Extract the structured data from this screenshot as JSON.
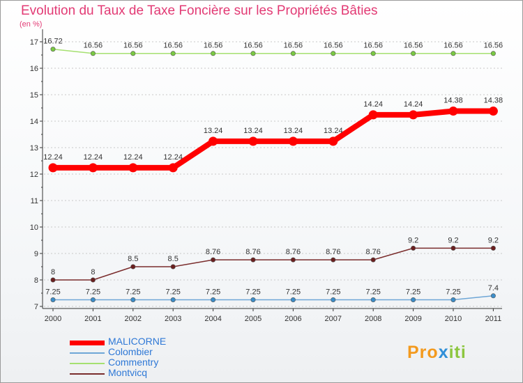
{
  "header": {
    "title": "Evolution du Taux de Taxe Foncière sur les Propriétés Bâties",
    "subtitle": "(en %)"
  },
  "logo": {
    "part1": "Pro",
    "part2": "x",
    "part3": "iti"
  },
  "colors": {
    "title": "#e23a74",
    "axis": "#333333",
    "grid": "#c8c8c8",
    "legend_text": "#2e78d6"
  },
  "chart_data": {
    "type": "line",
    "title": "Evolution du Taux de Taxe Foncière sur les Propriétés Bâties",
    "ylabel": "(en %)",
    "xlabel": "",
    "ylim": [
      7,
      17
    ],
    "yticks": [
      7,
      8,
      9,
      10,
      11,
      12,
      13,
      14,
      15,
      16,
      17
    ],
    "grid": true,
    "x": [
      "2000",
      "2001",
      "2002",
      "2003",
      "2004",
      "2005",
      "2006",
      "2007",
      "2008",
      "2009",
      "2010",
      "2011"
    ],
    "series": [
      {
        "name": "MALICORNE",
        "color": "#ff0000",
        "marker": "#ff0000",
        "bold": true,
        "values": [
          12.24,
          12.24,
          12.24,
          12.24,
          13.24,
          13.24,
          13.24,
          13.24,
          14.24,
          14.24,
          14.38,
          14.38
        ],
        "labels": [
          "12.24",
          "12.24",
          "12.24",
          "12.24",
          "13.24",
          "13.24",
          "13.24",
          "13.24",
          "14.24",
          "14.24",
          "14.38",
          "14.38"
        ]
      },
      {
        "name": "Colombier",
        "color": "#6ea6d6",
        "marker": "#3d8ec9",
        "bold": false,
        "values": [
          7.25,
          7.25,
          7.25,
          7.25,
          7.25,
          7.25,
          7.25,
          7.25,
          7.25,
          7.25,
          7.25,
          7.4
        ],
        "labels": [
          "7.25",
          "7.25",
          "7.25",
          "7.25",
          "7.25",
          "7.25",
          "7.25",
          "7.25",
          "7.25",
          "7.25",
          "7.25",
          "7.4"
        ]
      },
      {
        "name": "Commentry",
        "color": "#a5e070",
        "marker": "#7ac943",
        "bold": false,
        "values": [
          16.72,
          16.56,
          16.56,
          16.56,
          16.56,
          16.56,
          16.56,
          16.56,
          16.56,
          16.56,
          16.56,
          16.56
        ],
        "labels": [
          "16.72",
          "16.56",
          "16.56",
          "16.56",
          "16.56",
          "16.56",
          "16.56",
          "16.56",
          "16.56",
          "16.56",
          "16.56",
          "16.56"
        ]
      },
      {
        "name": "Montvicq",
        "color": "#7a2c2c",
        "marker": "#6b1f1f",
        "bold": false,
        "values": [
          8,
          8,
          8.5,
          8.5,
          8.76,
          8.76,
          8.76,
          8.76,
          8.76,
          9.2,
          9.2,
          9.2
        ],
        "labels": [
          "8",
          "8",
          "8.5",
          "8.5",
          "8.76",
          "8.76",
          "8.76",
          "8.76",
          "8.76",
          "9.2",
          "9.2",
          "9.2"
        ]
      }
    ]
  }
}
